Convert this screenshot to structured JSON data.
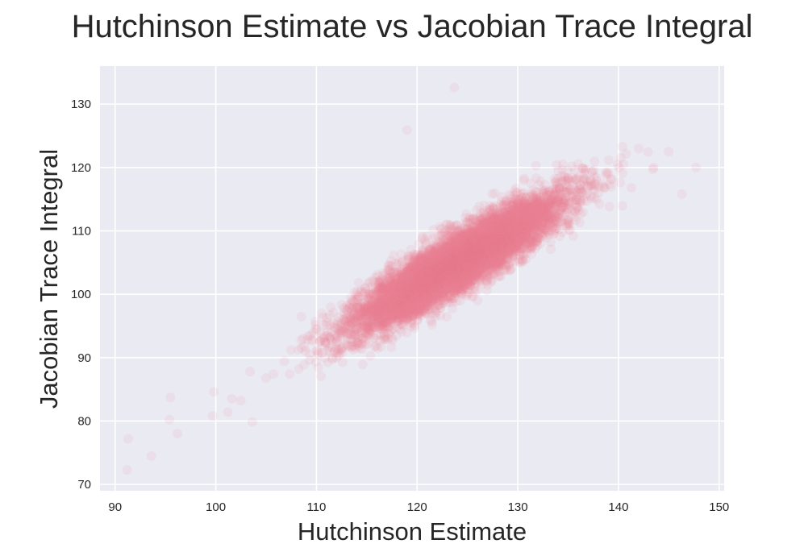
{
  "chart_data": {
    "type": "scatter",
    "title": "Hutchinson Estimate vs Jacobian Trace Integral",
    "xlabel": "Hutchinson Estimate",
    "ylabel": "Jacobian Trace Integral",
    "xlim": [
      88.5,
      150.5
    ],
    "ylim": [
      69,
      136
    ],
    "xticks": [
      90,
      100,
      110,
      120,
      130,
      140,
      150
    ],
    "yticks": [
      70,
      80,
      90,
      100,
      110,
      120,
      130
    ],
    "grid": true,
    "colors": {
      "point": "#f07b93",
      "background": "#eaeaf2",
      "grid": "#ffffff",
      "text": "#262626"
    },
    "point_alpha": 0.1,
    "estimated_n_points": 8000,
    "distribution": {
      "x_mean": 124,
      "x_std": 5.2,
      "y_mean": 105,
      "y_std": 5.3,
      "correlation": 0.9
    },
    "points_sample": [
      [
        91.2,
        72.3
      ],
      [
        91.3,
        77.2
      ],
      [
        93.6,
        74.5
      ],
      [
        95.4,
        80.2
      ],
      [
        96.2,
        78.0
      ],
      [
        95.5,
        83.7
      ],
      [
        99.7,
        80.8
      ],
      [
        99.8,
        84.6
      ],
      [
        101.2,
        81.4
      ],
      [
        101.6,
        83.5
      ],
      [
        103.4,
        87.8
      ],
      [
        105.0,
        86.8
      ],
      [
        108.5,
        91.5
      ],
      [
        112.0,
        93.0
      ],
      [
        113.5,
        96.0
      ],
      [
        116.0,
        98.5
      ],
      [
        118.5,
        101.0
      ],
      [
        120.0,
        103.0
      ],
      [
        122.5,
        104.5
      ],
      [
        124.5,
        105.5
      ],
      [
        126.0,
        107.5
      ],
      [
        128.5,
        109.5
      ],
      [
        130.0,
        110.5
      ],
      [
        132.0,
        112.0
      ],
      [
        134.5,
        114.5
      ],
      [
        137.0,
        117.0
      ],
      [
        139.0,
        119.0
      ],
      [
        140.5,
        120.5
      ],
      [
        142.0,
        123.0
      ],
      [
        143.5,
        120.0
      ],
      [
        145.0,
        122.5
      ],
      [
        146.3,
        115.8
      ],
      [
        147.7,
        120.0
      ],
      [
        123.7,
        132.6
      ],
      [
        119.0,
        125.9
      ]
    ]
  }
}
